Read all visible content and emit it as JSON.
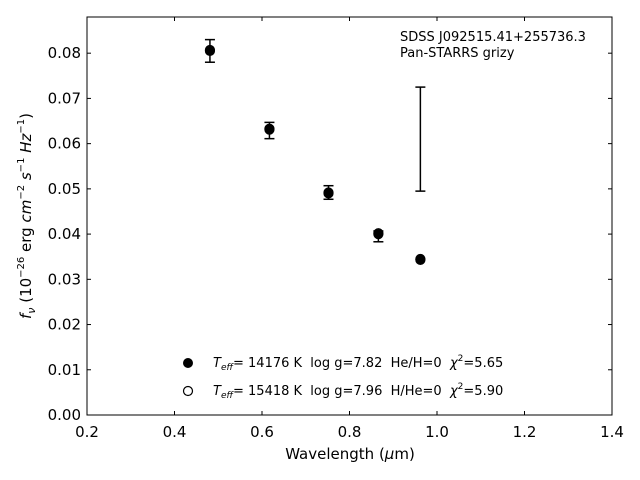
{
  "chart_data": {
    "type": "scatter",
    "title": "",
    "xlabel": "Wavelength (μm)",
    "ylabel": "f_ν (10^−26 erg cm^−2 s^−1 Hz^−1)",
    "xlim": [
      0.2,
      1.4
    ],
    "ylim": [
      0.0,
      0.088
    ],
    "xticks": [
      "0.2",
      "0.4",
      "0.6",
      "0.8",
      "1.0",
      "1.2",
      "1.4"
    ],
    "yticks": [
      "0.00",
      "0.01",
      "0.02",
      "0.03",
      "0.04",
      "0.05",
      "0.06",
      "0.07",
      "0.08"
    ],
    "grid": false,
    "annotation": [
      "SDSS J092515.41+255736.3",
      "Pan-STARRS grizy"
    ],
    "observed": {
      "x": [
        0.481,
        0.617,
        0.752,
        0.866,
        0.962
      ],
      "y": [
        0.0805,
        0.0629,
        0.0492,
        0.0395,
        0.061
      ],
      "yerr": [
        0.0025,
        0.0018,
        0.0015,
        0.0012,
        0.0115
      ]
    },
    "series": [
      {
        "marker": "filled-circle",
        "x": [
          0.481,
          0.617,
          0.752,
          0.866,
          0.962
        ],
        "y": [
          0.0805,
          0.0633,
          0.049,
          0.04,
          0.0343
        ]
      },
      {
        "marker": "open-circle",
        "x": [
          0.481,
          0.617,
          0.752,
          0.866,
          0.962
        ],
        "y": [
          0.0807,
          0.0631,
          0.0492,
          0.0402,
          0.0345
        ]
      }
    ],
    "legend": {
      "placement": "lower-center",
      "entries": [
        {
          "marker": "filled-circle",
          "teff_label": "T",
          "teff_sub": "eff",
          "rest": "= 14176 K  log g=7.82  He/H=0  ",
          "chi_label": "χ",
          "chi_sup": "2",
          "chi_val": "=5.65"
        },
        {
          "marker": "open-circle",
          "teff_label": "T",
          "teff_sub": "eff",
          "rest": "= 15418 K  log g=7.96  H/He=0  ",
          "chi_label": "χ",
          "chi_sup": "2",
          "chi_val": "=5.90"
        }
      ]
    }
  }
}
